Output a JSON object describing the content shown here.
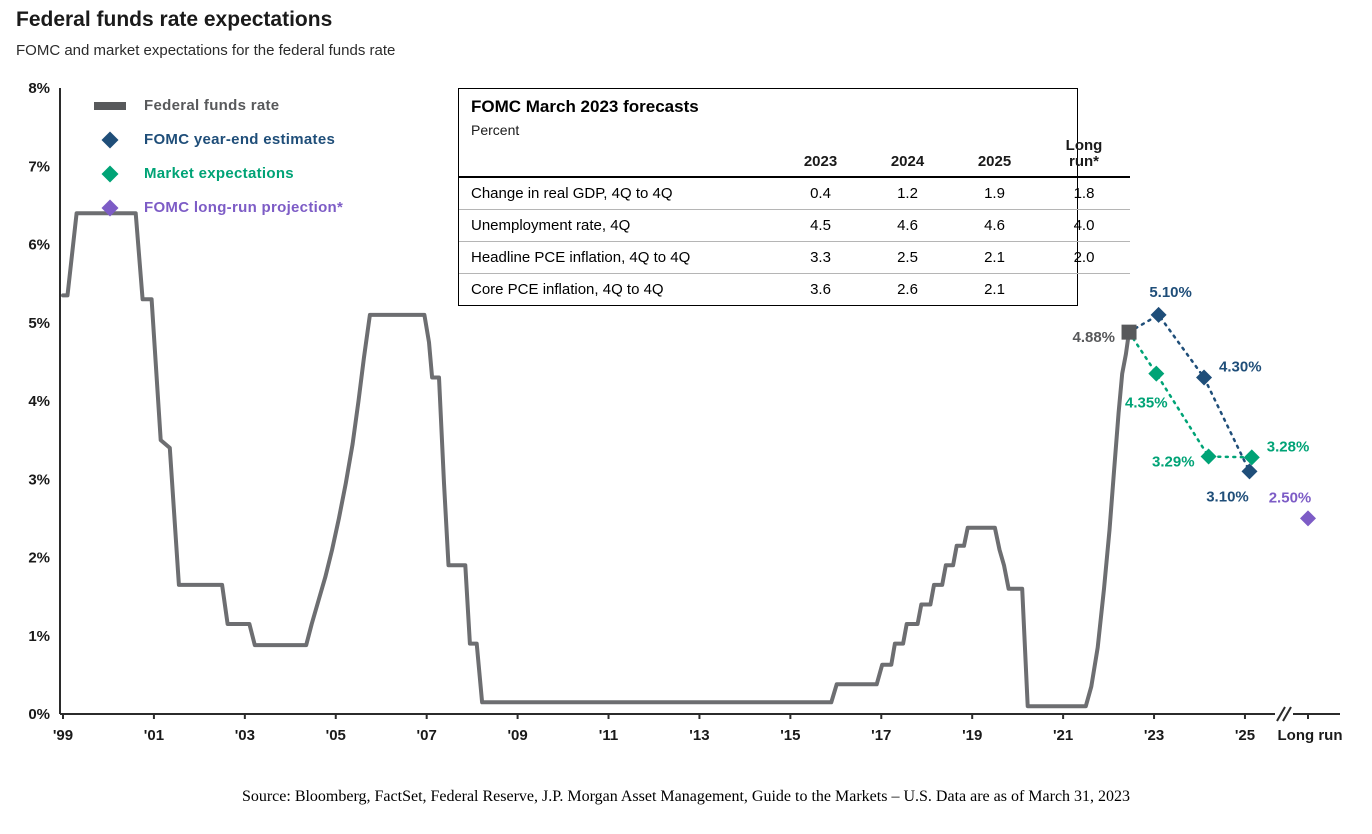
{
  "header": {
    "title": "Federal funds rate expectations",
    "subtitle": "FOMC and market expectations for the federal funds rate"
  },
  "legend": {
    "items": [
      {
        "label": "Federal funds rate",
        "marker": "line",
        "color": "#58595b"
      },
      {
        "label": "FOMC year-end estimates",
        "marker": "diamond",
        "color": "#1f4e79"
      },
      {
        "label": "Market expectations",
        "marker": "diamond",
        "color": "#00a376"
      },
      {
        "label": "FOMC long-run projection*",
        "marker": "diamond",
        "color": "#7d5cc6"
      }
    ]
  },
  "forecast_table": {
    "title": "FOMC March 2023 forecasts",
    "unit_label": "Percent",
    "columns": [
      "2023",
      "2024",
      "2025",
      "Long run*"
    ],
    "rows": [
      {
        "label": "Change in real GDP, 4Q to 4Q",
        "values": [
          "0.4",
          "1.2",
          "1.9",
          "1.8"
        ]
      },
      {
        "label": "Unemployment rate, 4Q",
        "values": [
          "4.5",
          "4.6",
          "4.6",
          "4.0"
        ]
      },
      {
        "label": "Headline PCE inflation, 4Q to 4Q",
        "values": [
          "3.3",
          "2.5",
          "2.1",
          "2.0"
        ]
      },
      {
        "label": "Core PCE inflation, 4Q to 4Q",
        "values": [
          "3.6",
          "2.6",
          "2.1",
          ""
        ]
      }
    ]
  },
  "chart_data": {
    "type": "line",
    "title": "Federal funds rate expectations",
    "subtitle": "FOMC and market expectations for the federal funds rate",
    "ylim": [
      0,
      8
    ],
    "ytick_labels": [
      "0%",
      "1%",
      "2%",
      "3%",
      "4%",
      "5%",
      "6%",
      "7%",
      "8%"
    ],
    "xticks": [
      {
        "label": "'99",
        "year": 1999
      },
      {
        "label": "'01",
        "year": 2001
      },
      {
        "label": "'03",
        "year": 2003
      },
      {
        "label": "'05",
        "year": 2005
      },
      {
        "label": "'07",
        "year": 2007
      },
      {
        "label": "'09",
        "year": 2009
      },
      {
        "label": "'11",
        "year": 2011
      },
      {
        "label": "'13",
        "year": 2013
      },
      {
        "label": "'15",
        "year": 2015
      },
      {
        "label": "'17",
        "year": 2017
      },
      {
        "label": "'19",
        "year": 2019
      },
      {
        "label": "'21",
        "year": 2021
      },
      {
        "label": "'23",
        "year": 2023
      },
      {
        "label": "'25",
        "year": 2025
      }
    ],
    "long_run_tick_label": "Long run",
    "x_axis_break": true,
    "grid": false,
    "legend_position": "top-left",
    "series": [
      {
        "name": "Federal funds rate",
        "type": "step-line",
        "color": "#6d6e71",
        "x": [
          1999.0,
          1999.1,
          1999.3,
          2000.6,
          2000.75,
          2000.95,
          2001.15,
          2001.35,
          2001.55,
          2002.5,
          2002.62,
          2003.1,
          2003.22,
          2004.35,
          2004.47,
          2004.62,
          2004.77,
          2004.92,
          2005.07,
          2005.22,
          2005.37,
          2005.5,
          2005.62,
          2005.75,
          2006.95,
          2007.05,
          2007.12,
          2007.27,
          2007.38,
          2007.48,
          2007.85,
          2007.95,
          2008.1,
          2008.22,
          2015.9,
          2016.02,
          2016.9,
          2017.02,
          2017.22,
          2017.3,
          2017.48,
          2017.56,
          2017.8,
          2017.88,
          2018.08,
          2018.16,
          2018.34,
          2018.42,
          2018.58,
          2018.66,
          2018.82,
          2018.9,
          2019.0,
          2019.5,
          2019.6,
          2019.7,
          2019.8,
          2020.1,
          2020.22,
          2021.5,
          2021.62,
          2021.76,
          2021.9,
          2022.02,
          2022.12,
          2022.22,
          2022.3,
          2022.38,
          2022.45
        ],
        "values": [
          5.35,
          5.35,
          6.4,
          6.4,
          5.3,
          5.3,
          3.5,
          3.4,
          1.65,
          1.65,
          1.15,
          1.15,
          0.88,
          0.88,
          1.15,
          1.45,
          1.75,
          2.1,
          2.5,
          2.95,
          3.45,
          4.0,
          4.55,
          5.1,
          5.1,
          4.75,
          4.3,
          4.3,
          2.95,
          1.9,
          1.9,
          0.9,
          0.9,
          0.15,
          0.15,
          0.38,
          0.38,
          0.63,
          0.63,
          0.9,
          0.9,
          1.15,
          1.15,
          1.4,
          1.4,
          1.65,
          1.65,
          1.9,
          1.9,
          2.15,
          2.15,
          2.38,
          2.38,
          2.38,
          2.1,
          1.9,
          1.6,
          1.6,
          0.1,
          0.1,
          0.35,
          0.85,
          1.6,
          2.35,
          3.1,
          3.85,
          4.35,
          4.6,
          4.88
        ]
      },
      {
        "name": "FOMC year-end estimates",
        "type": "dotted-diamond",
        "color": "#1f4e79",
        "connect_from_current": true,
        "points": [
          {
            "year": 2023.1,
            "value": 5.1,
            "label": "5.10%",
            "label_pos": "above"
          },
          {
            "year": 2024.1,
            "value": 4.3,
            "label": "4.30%",
            "label_pos": "right"
          },
          {
            "year": 2025.1,
            "value": 3.1,
            "label": "3.10%",
            "label_pos": "below-left"
          }
        ]
      },
      {
        "name": "Market expectations",
        "type": "dotted-diamond",
        "color": "#00a376",
        "connect_from_current": true,
        "points": [
          {
            "year": 2023.05,
            "value": 4.35,
            "label": "4.35%",
            "label_pos": "below"
          },
          {
            "year": 2024.2,
            "value": 3.29,
            "label": "3.29%",
            "label_pos": "left"
          },
          {
            "year": 2025.15,
            "value": 3.28,
            "label": "3.28%",
            "label_pos": "right"
          }
        ]
      },
      {
        "name": "FOMC long-run projection*",
        "type": "diamond",
        "color": "#7d5cc6",
        "points": [
          {
            "x_axis": "long_run",
            "value": 2.5,
            "label": "2.50%",
            "label_pos": "above-left"
          }
        ]
      }
    ],
    "current_rate": {
      "year": 2022.45,
      "value": 4.88,
      "label": "4.88%",
      "label_pos": "left",
      "color": "#58595b",
      "marker": "square"
    }
  },
  "footer": {
    "source": "Source: Bloomberg, FactSet, Federal Reserve, J.P. Morgan Asset Management, Guide to the Markets – U.S. Data are as of March 31, 2023"
  }
}
